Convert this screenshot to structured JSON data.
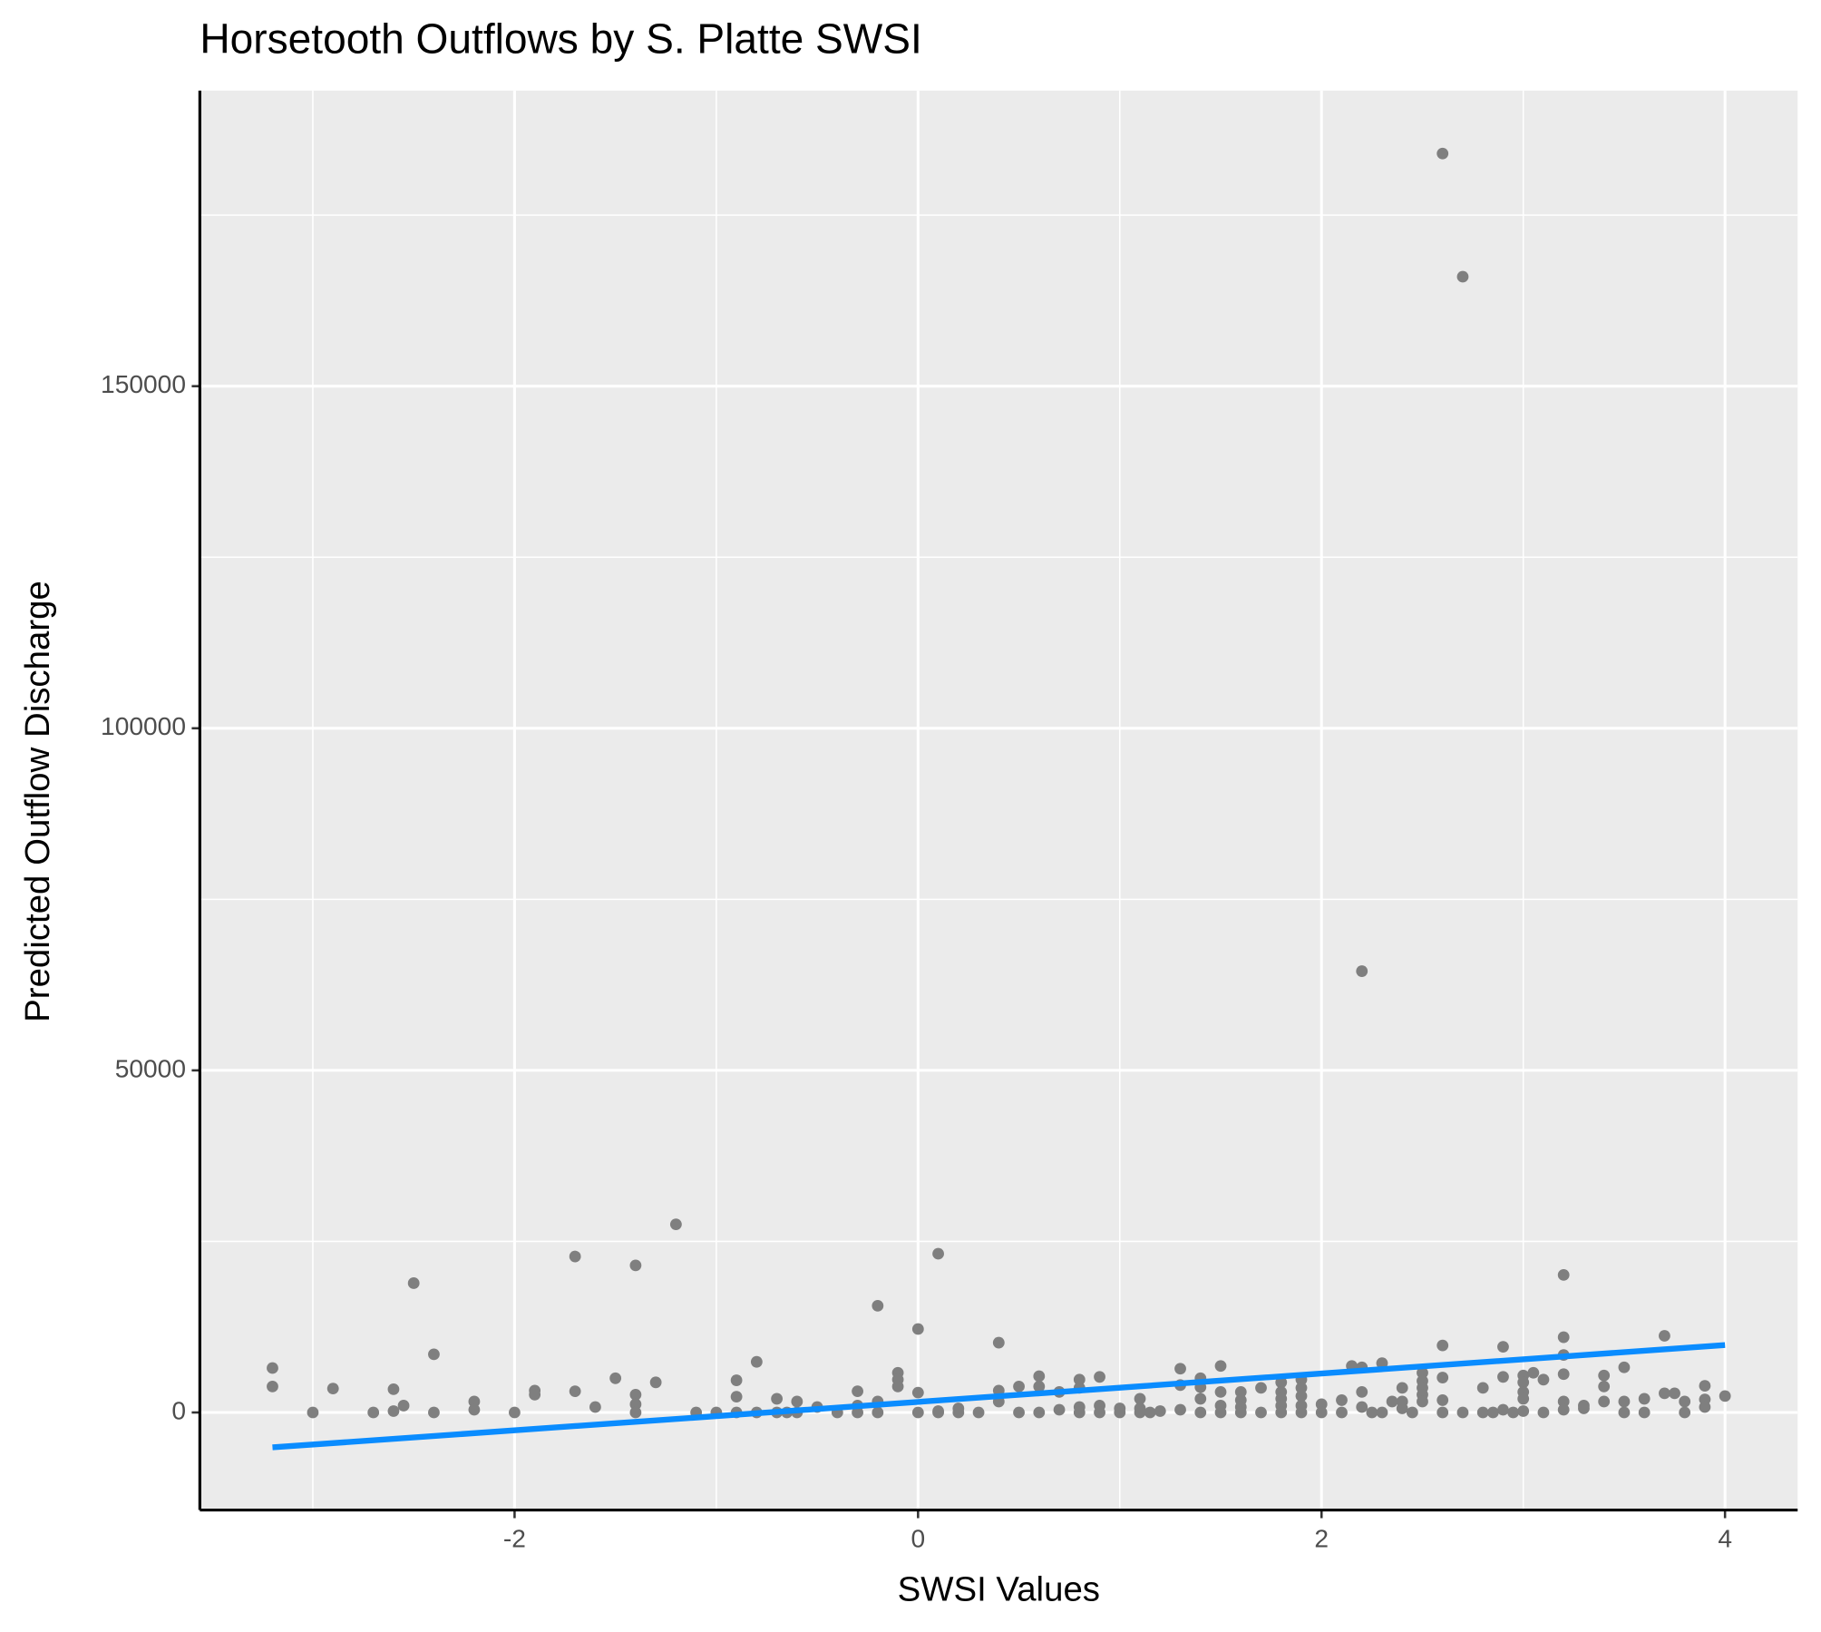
{
  "chart_data": {
    "type": "scatter",
    "title": "Horsetooth Outflows by S. Platte SWSI",
    "x_label": "SWSI Values",
    "y_label": "Predicted Outflow Discharge",
    "xlim": [
      -3.56,
      4.36
    ],
    "ylim": [
      -14260,
      193200
    ],
    "xticks": [
      -2,
      0,
      2,
      4
    ],
    "yticks": [
      0,
      50000,
      100000,
      150000
    ],
    "x_minor_grid": [
      -3,
      -1,
      1,
      3
    ],
    "y_minor_grid": [
      25000,
      75000,
      125000,
      175000
    ],
    "grid": true,
    "panel_color": "#ebebeb",
    "points": {
      "color": "#7f7f7f",
      "x": [
        -3.2,
        -3.2,
        -3.0,
        -2.9,
        -2.7,
        -2.6,
        -2.6,
        -2.55,
        -2.5,
        -2.4,
        -2.4,
        -2.2,
        -2.2,
        -2.0,
        -1.9,
        -1.9,
        -1.7,
        -1.7,
        -1.6,
        -1.5,
        -1.4,
        -1.4,
        -1.4,
        -1.4,
        -1.3,
        -1.2,
        -1.1,
        -1.0,
        -0.9,
        -0.9,
        -0.9,
        -0.8,
        -0.8,
        -0.7,
        -0.7,
        -0.65,
        -0.6,
        -0.6,
        -0.5,
        -0.4,
        -0.3,
        -0.3,
        -0.3,
        -0.2,
        -0.2,
        -0.2,
        -0.1,
        -0.1,
        -0.1,
        0,
        0,
        0,
        0.1,
        0.1,
        0.1,
        0.2,
        0.2,
        0.3,
        0.4,
        0.4,
        0.4,
        0.5,
        0.5,
        0.6,
        0.6,
        0.6,
        0.7,
        0.7,
        0.8,
        0.8,
        0.8,
        0.8,
        0.9,
        0.9,
        0.9,
        1.0,
        1.0,
        1.1,
        1.1,
        1.1,
        1.15,
        1.2,
        1.3,
        1.3,
        1.3,
        1.4,
        1.4,
        1.4,
        1.4,
        1.5,
        1.5,
        1.5,
        1.5,
        1.6,
        1.6,
        1.6,
        1.6,
        1.7,
        1.7,
        1.8,
        1.8,
        1.8,
        1.8,
        1.8,
        1.9,
        1.9,
        1.9,
        1.9,
        1.9,
        2.0,
        2.0,
        2.1,
        2.1,
        2.15,
        2.2,
        2.2,
        2.2,
        2.2,
        2.25,
        2.3,
        2.3,
        2.35,
        2.4,
        2.4,
        2.4,
        2.45,
        2.5,
        2.5,
        2.5,
        2.5,
        2.5,
        2.6,
        2.6,
        2.6,
        2.6,
        2.6,
        2.7,
        2.7,
        2.8,
        2.8,
        2.85,
        2.9,
        2.9,
        2.9,
        2.95,
        3.0,
        3.0,
        3.0,
        3.0,
        3.0,
        3.05,
        3.1,
        3.1,
        3.2,
        3.2,
        3.2,
        3.2,
        3.2,
        3.2,
        3.3,
        3.3,
        3.4,
        3.4,
        3.4,
        3.5,
        3.5,
        3.5,
        3.6,
        3.6,
        3.7,
        3.7,
        3.75,
        3.8,
        3.8,
        3.9,
        3.9,
        3.9,
        4.0
      ],
      "y": [
        6500,
        3800,
        0,
        3500,
        0,
        3400,
        200,
        1000,
        18900,
        8500,
        0,
        1600,
        400,
        0,
        3200,
        2600,
        22800,
        3100,
        800,
        5000,
        21500,
        2600,
        1200,
        0,
        4400,
        27500,
        0,
        0,
        4700,
        2300,
        0,
        7400,
        0,
        0,
        2000,
        0,
        1600,
        0,
        800,
        0,
        3100,
        1000,
        0,
        15600,
        1600,
        0,
        5800,
        4800,
        3800,
        12200,
        2900,
        0,
        23200,
        200,
        0,
        600,
        0,
        0,
        10200,
        3200,
        1600,
        3800,
        0,
        5300,
        3800,
        0,
        3000,
        400,
        4800,
        3600,
        800,
        0,
        5200,
        1000,
        0,
        600,
        0,
        2000,
        600,
        0,
        0,
        200,
        6400,
        4000,
        400,
        5000,
        3700,
        2000,
        0,
        6800,
        3000,
        1000,
        0,
        3000,
        1800,
        800,
        0,
        3600,
        0,
        4400,
        3000,
        2000,
        1000,
        0,
        4800,
        3600,
        2400,
        1000,
        0,
        1200,
        0,
        1800,
        0,
        6800,
        64500,
        6600,
        3000,
        800,
        0,
        7200,
        0,
        1600,
        3600,
        1600,
        600,
        0,
        5800,
        4600,
        3600,
        2600,
        1600,
        184000,
        9800,
        5100,
        1800,
        0,
        166000,
        0,
        3600,
        0,
        0,
        9600,
        5200,
        400,
        0,
        5400,
        4400,
        3000,
        2000,
        200,
        5800,
        4800,
        0,
        20100,
        11000,
        8400,
        5600,
        1600,
        400,
        1000,
        600,
        5400,
        3800,
        1600,
        6600,
        1600,
        0,
        2000,
        0,
        11200,
        2800,
        2800,
        1600,
        0,
        3900,
        1900,
        800,
        2400
      ]
    },
    "fit_line": {
      "color": "#0a8cff",
      "x": [
        -3.2,
        4.0
      ],
      "y": [
        -5100,
        9850
      ]
    }
  }
}
